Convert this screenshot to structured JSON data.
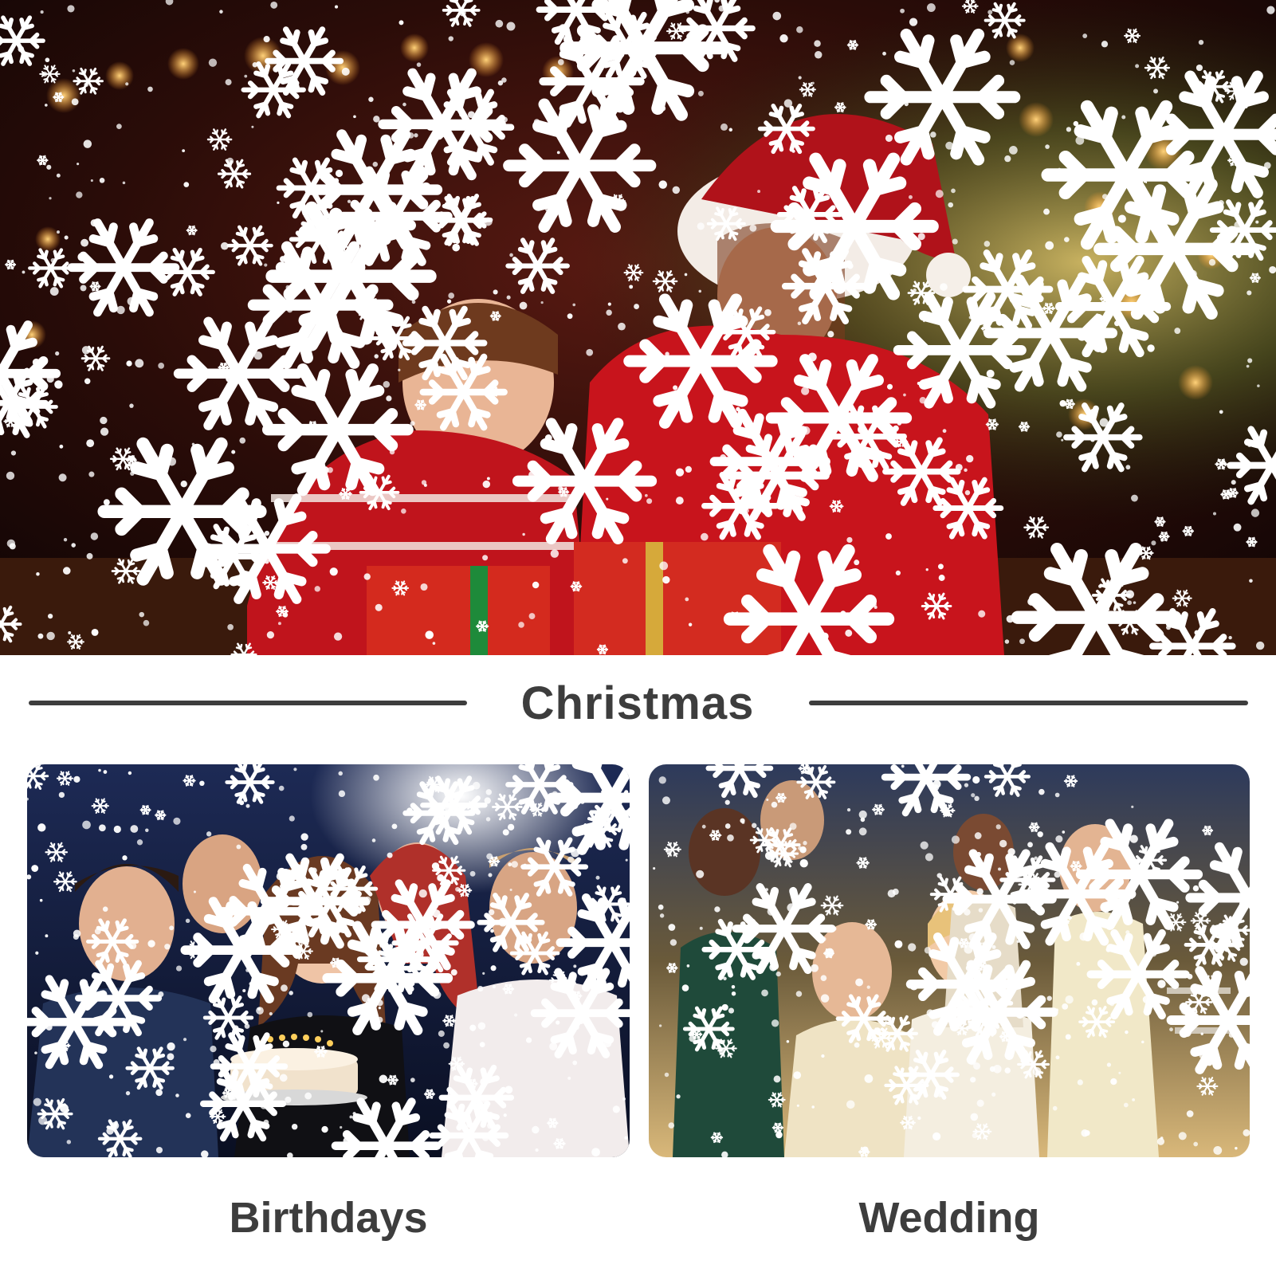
{
  "hero": {
    "scene": "christmas-family-with-snowflake-projection"
  },
  "sections": {
    "christmas_label": "Christmas",
    "birthday_label": "Birthdays",
    "wedding_label": "Wedding"
  },
  "colors": {
    "heading_text": "#3d3d3d",
    "divider": "#3d3d3d",
    "sweater_red": "#c8141c",
    "snow_white": "#ffffff"
  }
}
